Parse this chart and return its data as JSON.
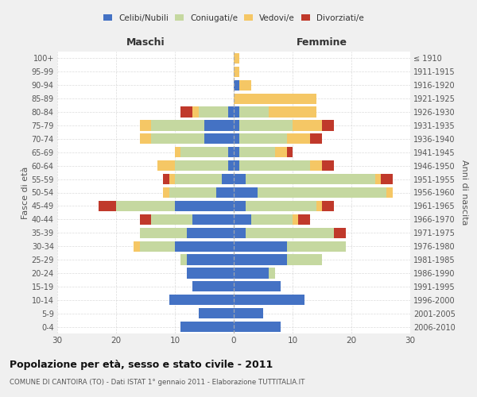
{
  "age_groups": [
    "0-4",
    "5-9",
    "10-14",
    "15-19",
    "20-24",
    "25-29",
    "30-34",
    "35-39",
    "40-44",
    "45-49",
    "50-54",
    "55-59",
    "60-64",
    "65-69",
    "70-74",
    "75-79",
    "80-84",
    "85-89",
    "90-94",
    "95-99",
    "100+"
  ],
  "birth_years": [
    "2006-2010",
    "2001-2005",
    "1996-2000",
    "1991-1995",
    "1986-1990",
    "1981-1985",
    "1976-1980",
    "1971-1975",
    "1966-1970",
    "1961-1965",
    "1956-1960",
    "1951-1955",
    "1946-1950",
    "1941-1945",
    "1936-1940",
    "1931-1935",
    "1926-1930",
    "1921-1925",
    "1916-1920",
    "1911-1915",
    "≤ 1910"
  ],
  "males": {
    "celibi": [
      9,
      6,
      11,
      7,
      8,
      8,
      10,
      8,
      7,
      10,
      3,
      2,
      1,
      1,
      5,
      5,
      1,
      0,
      0,
      0,
      0
    ],
    "coniugati": [
      0,
      0,
      0,
      0,
      0,
      1,
      6,
      8,
      7,
      10,
      8,
      8,
      9,
      8,
      9,
      9,
      5,
      0,
      0,
      0,
      0
    ],
    "vedovi": [
      0,
      0,
      0,
      0,
      0,
      0,
      1,
      0,
      0,
      0,
      1,
      1,
      3,
      1,
      2,
      2,
      1,
      0,
      0,
      0,
      0
    ],
    "divorziati": [
      0,
      0,
      0,
      0,
      0,
      0,
      0,
      0,
      2,
      3,
      0,
      1,
      0,
      0,
      0,
      0,
      2,
      0,
      0,
      0,
      0
    ]
  },
  "females": {
    "nubili": [
      8,
      5,
      12,
      8,
      6,
      9,
      9,
      2,
      3,
      2,
      4,
      2,
      1,
      1,
      1,
      1,
      1,
      0,
      1,
      0,
      0
    ],
    "coniugate": [
      0,
      0,
      0,
      0,
      1,
      6,
      10,
      15,
      7,
      12,
      22,
      22,
      12,
      6,
      8,
      9,
      5,
      0,
      0,
      0,
      0
    ],
    "vedove": [
      0,
      0,
      0,
      0,
      0,
      0,
      0,
      0,
      1,
      1,
      1,
      1,
      2,
      2,
      4,
      5,
      8,
      14,
      2,
      1,
      1
    ],
    "divorziate": [
      0,
      0,
      0,
      0,
      0,
      0,
      0,
      2,
      2,
      2,
      0,
      2,
      2,
      1,
      2,
      2,
      0,
      0,
      0,
      0,
      0
    ]
  },
  "color_celibi": "#4472c4",
  "color_coniugati": "#c5d8a0",
  "color_vedovi": "#f5c765",
  "color_divorziati": "#c0392b",
  "xlim": 30,
  "title": "Popolazione per età, sesso e stato civile - 2011",
  "subtitle": "COMUNE DI CANTOIRA (TO) - Dati ISTAT 1° gennaio 2011 - Elaborazione TUTTITALIA.IT",
  "xlabel_left": "Maschi",
  "xlabel_right": "Femmine",
  "ylabel_left": "Fasce di età",
  "ylabel_right": "Anni di nascita",
  "bg_color": "#f0f0f0",
  "plot_bg_color": "#ffffff",
  "grid_color": "#cccccc",
  "legend_labels": [
    "Celibi/Nubili",
    "Coniugati/e",
    "Vedovi/e",
    "Divorziati/e"
  ]
}
